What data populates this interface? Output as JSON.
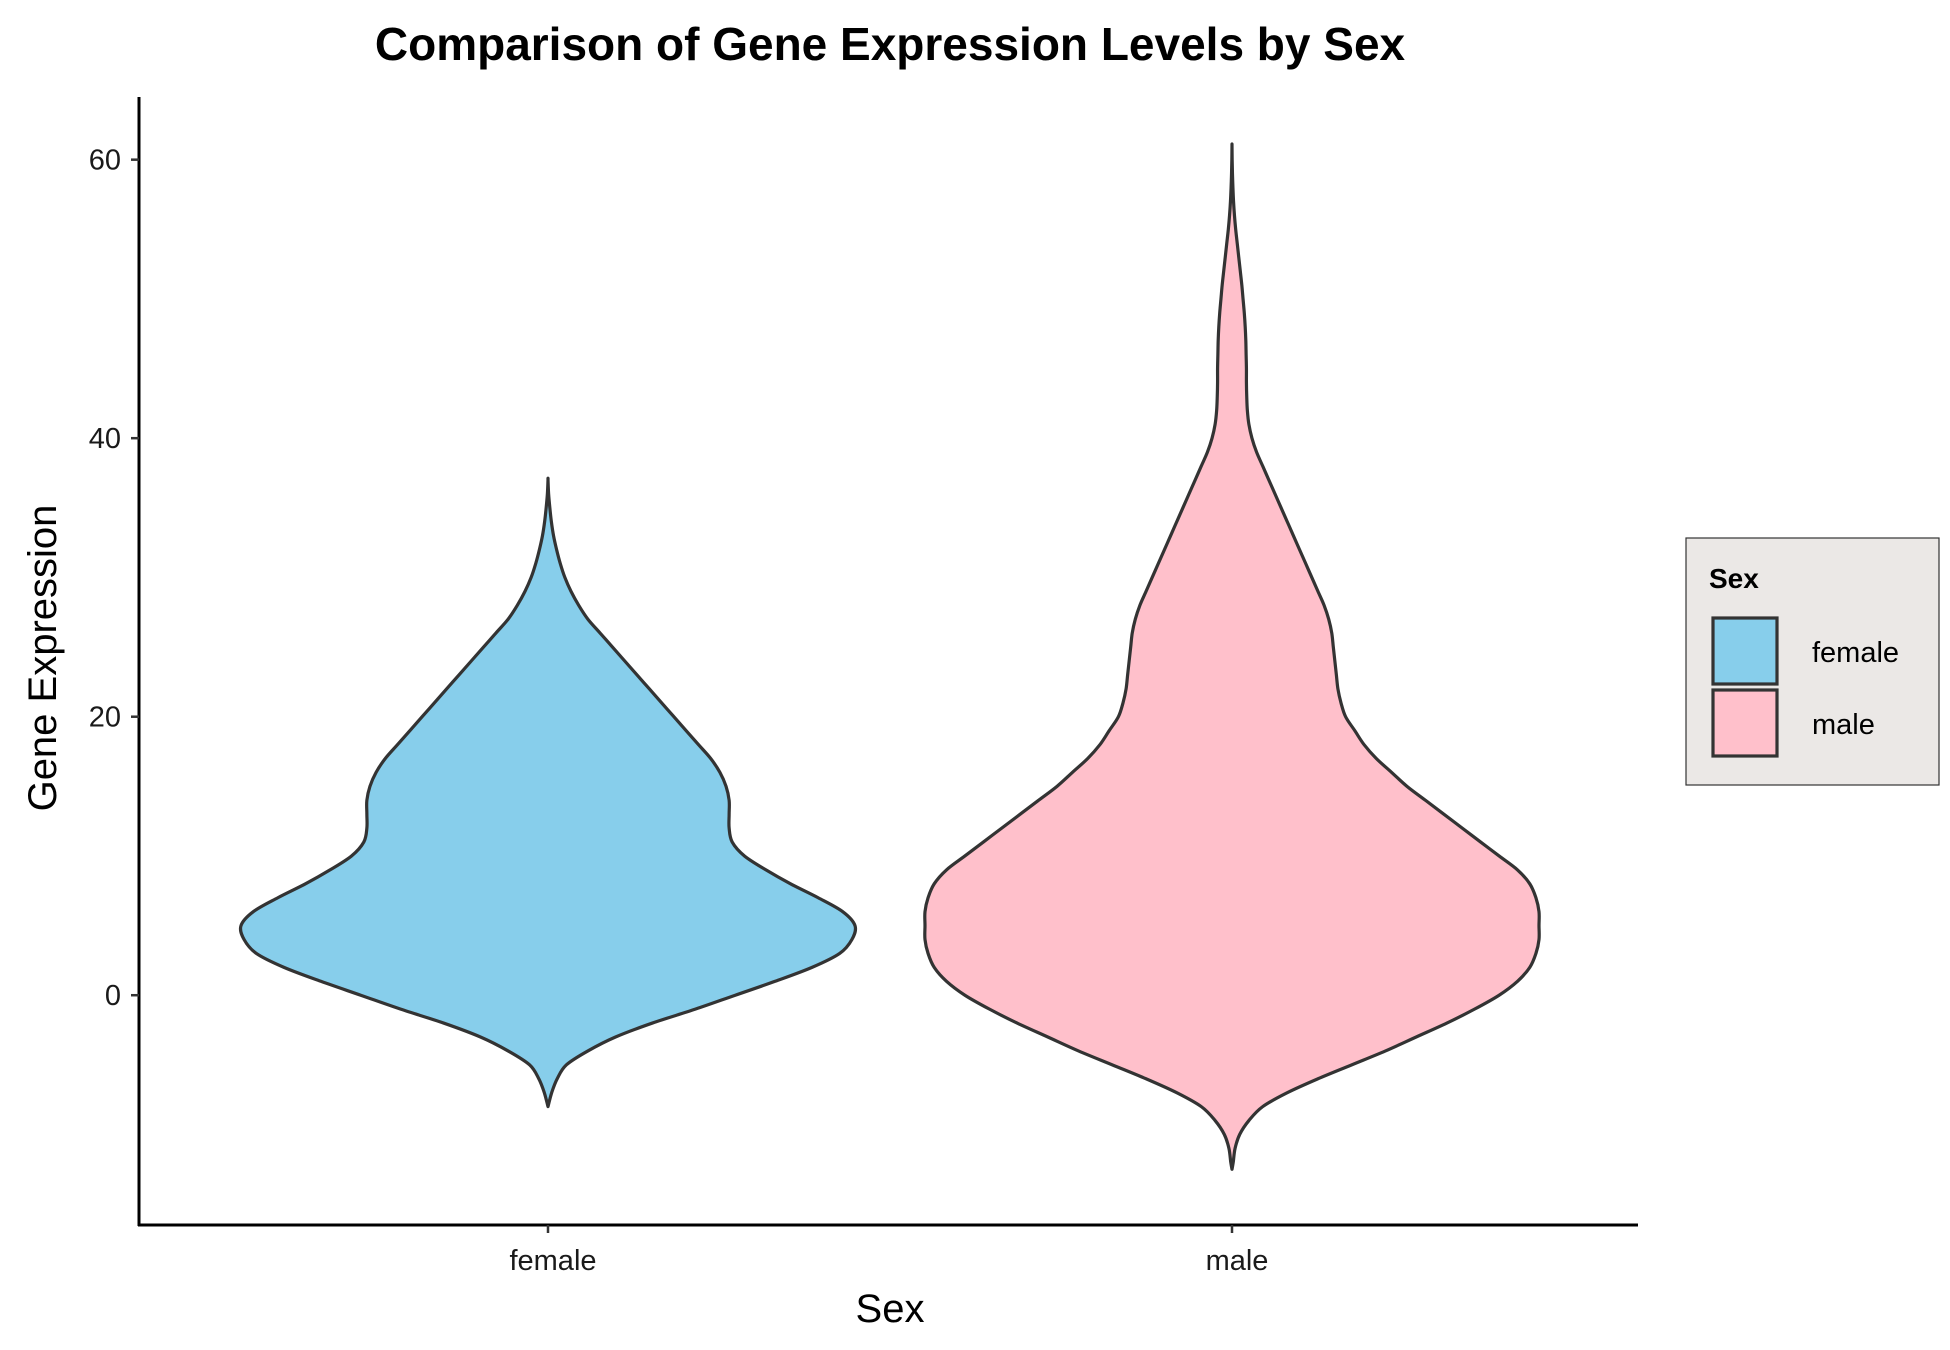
{
  "chart_data": {
    "type": "violin",
    "title": "Comparison of Gene Expression Levels by Sex",
    "xlabel": "Sex",
    "ylabel": "Gene Expression",
    "categories": [
      "female",
      "male"
    ],
    "ylim": [
      -16.5,
      64.5
    ],
    "yticks": [
      0,
      20,
      40,
      60
    ],
    "grid": false,
    "legend": {
      "title": "Sex",
      "position": "right",
      "background": "#ebe8e6"
    },
    "series": [
      {
        "name": "female",
        "color": "#87ceeb",
        "y_min": -8,
        "y_max": 37,
        "density": [
          [
            -8,
            0.0
          ],
          [
            -7,
            0.012
          ],
          [
            -6,
            0.03
          ],
          [
            -5,
            0.06
          ],
          [
            -4,
            0.13
          ],
          [
            -3,
            0.22
          ],
          [
            -2,
            0.34
          ],
          [
            -1,
            0.48
          ],
          [
            0,
            0.61
          ],
          [
            1,
            0.74
          ],
          [
            2,
            0.86
          ],
          [
            3,
            0.95
          ],
          [
            4,
            0.99
          ],
          [
            5,
            1.0
          ],
          [
            6,
            0.96
          ],
          [
            7,
            0.88
          ],
          [
            8,
            0.79
          ],
          [
            9,
            0.71
          ],
          [
            10,
            0.64
          ],
          [
            11,
            0.6
          ],
          [
            12,
            0.59
          ],
          [
            13,
            0.59
          ],
          [
            14,
            0.59
          ],
          [
            15,
            0.58
          ],
          [
            16,
            0.56
          ],
          [
            17,
            0.53
          ],
          [
            18,
            0.49
          ],
          [
            19,
            0.45
          ],
          [
            20,
            0.41
          ],
          [
            21,
            0.37
          ],
          [
            22,
            0.33
          ],
          [
            23,
            0.29
          ],
          [
            24,
            0.25
          ],
          [
            25,
            0.21
          ],
          [
            26,
            0.17
          ],
          [
            27,
            0.13
          ],
          [
            28,
            0.1
          ],
          [
            29,
            0.075
          ],
          [
            30,
            0.055
          ],
          [
            31,
            0.04
          ],
          [
            32,
            0.028
          ],
          [
            33,
            0.018
          ],
          [
            34,
            0.011
          ],
          [
            35,
            0.006
          ],
          [
            36,
            0.002
          ],
          [
            37,
            0.0
          ]
        ]
      },
      {
        "name": "male",
        "color": "#ffc0cb",
        "y_min": -12.5,
        "y_max": 61,
        "density": [
          [
            -12.5,
            0.0
          ],
          [
            -12,
            0.004
          ],
          [
            -11,
            0.01
          ],
          [
            -10,
            0.025
          ],
          [
            -9,
            0.055
          ],
          [
            -8,
            0.1
          ],
          [
            -7,
            0.18
          ],
          [
            -6,
            0.28
          ],
          [
            -5,
            0.39
          ],
          [
            -4,
            0.5
          ],
          [
            -3,
            0.6
          ],
          [
            -2,
            0.7
          ],
          [
            -1,
            0.79
          ],
          [
            0,
            0.87
          ],
          [
            1,
            0.93
          ],
          [
            2,
            0.97
          ],
          [
            3,
            0.99
          ],
          [
            4,
            1.0
          ],
          [
            5,
            1.0
          ],
          [
            6,
            1.0
          ],
          [
            7,
            0.99
          ],
          [
            8,
            0.97
          ],
          [
            9,
            0.93
          ],
          [
            10,
            0.87
          ],
          [
            11,
            0.81
          ],
          [
            12,
            0.75
          ],
          [
            13,
            0.69
          ],
          [
            14,
            0.63
          ],
          [
            15,
            0.57
          ],
          [
            16,
            0.52
          ],
          [
            17,
            0.47
          ],
          [
            18,
            0.43
          ],
          [
            19,
            0.4
          ],
          [
            20,
            0.37
          ],
          [
            21,
            0.355
          ],
          [
            22,
            0.345
          ],
          [
            23,
            0.34
          ],
          [
            24,
            0.335
          ],
          [
            25,
            0.33
          ],
          [
            26,
            0.325
          ],
          [
            27,
            0.315
          ],
          [
            28,
            0.3
          ],
          [
            29,
            0.28
          ],
          [
            30,
            0.26
          ],
          [
            31,
            0.24
          ],
          [
            32,
            0.22
          ],
          [
            33,
            0.2
          ],
          [
            34,
            0.18
          ],
          [
            35,
            0.16
          ],
          [
            36,
            0.14
          ],
          [
            37,
            0.12
          ],
          [
            38,
            0.1
          ],
          [
            39,
            0.08
          ],
          [
            40,
            0.065
          ],
          [
            41,
            0.055
          ],
          [
            42,
            0.05
          ],
          [
            43,
            0.048
          ],
          [
            44,
            0.047
          ],
          [
            45,
            0.047
          ],
          [
            46,
            0.046
          ],
          [
            47,
            0.045
          ],
          [
            48,
            0.043
          ],
          [
            49,
            0.04
          ],
          [
            50,
            0.036
          ],
          [
            51,
            0.032
          ],
          [
            52,
            0.027
          ],
          [
            53,
            0.022
          ],
          [
            54,
            0.017
          ],
          [
            55,
            0.012
          ],
          [
            56,
            0.008
          ],
          [
            57,
            0.005
          ],
          [
            58,
            0.003
          ],
          [
            59,
            0.0015
          ],
          [
            60,
            0.0005
          ],
          [
            61,
            0.0
          ]
        ]
      }
    ]
  }
}
